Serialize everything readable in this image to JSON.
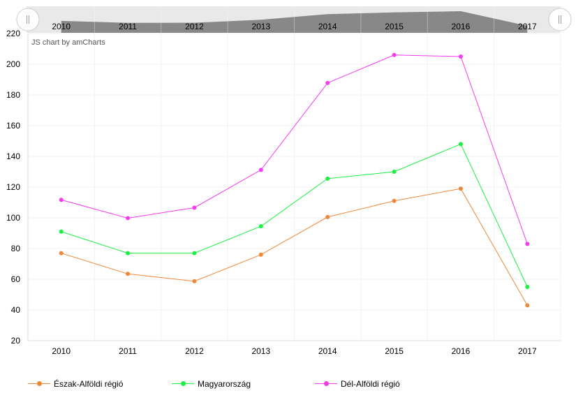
{
  "chart_data": {
    "type": "line",
    "credit": "JS chart by amCharts",
    "x": [
      "2010",
      "2011",
      "2012",
      "2013",
      "2014",
      "2015",
      "2016",
      "2017"
    ],
    "ylim": [
      20,
      220
    ],
    "yticks": [
      20,
      40,
      60,
      80,
      100,
      120,
      140,
      160,
      180,
      200,
      220
    ],
    "grid": true,
    "legend_position": "bottom",
    "series": [
      {
        "name": "Észak-Alföldi régió",
        "color": "#f0883a",
        "values": [
          77,
          63.5,
          58.7,
          76,
          100.5,
          111,
          119,
          43
        ]
      },
      {
        "name": "Magyarország",
        "color": "#1cf043",
        "values": [
          91,
          77,
          77,
          94.5,
          125.5,
          130,
          148,
          55
        ]
      },
      {
        "name": "Dél-Alföldi régió",
        "color": "#f53cf0",
        "values": [
          111.7,
          99.8,
          106.6,
          131.2,
          187.8,
          206,
          205,
          83
        ]
      }
    ],
    "scrollbar": {
      "labels": [
        "2010",
        "2011",
        "2012",
        "2013",
        "2014",
        "2015",
        "2016",
        "2017"
      ],
      "range": [
        0,
        1
      ]
    }
  }
}
